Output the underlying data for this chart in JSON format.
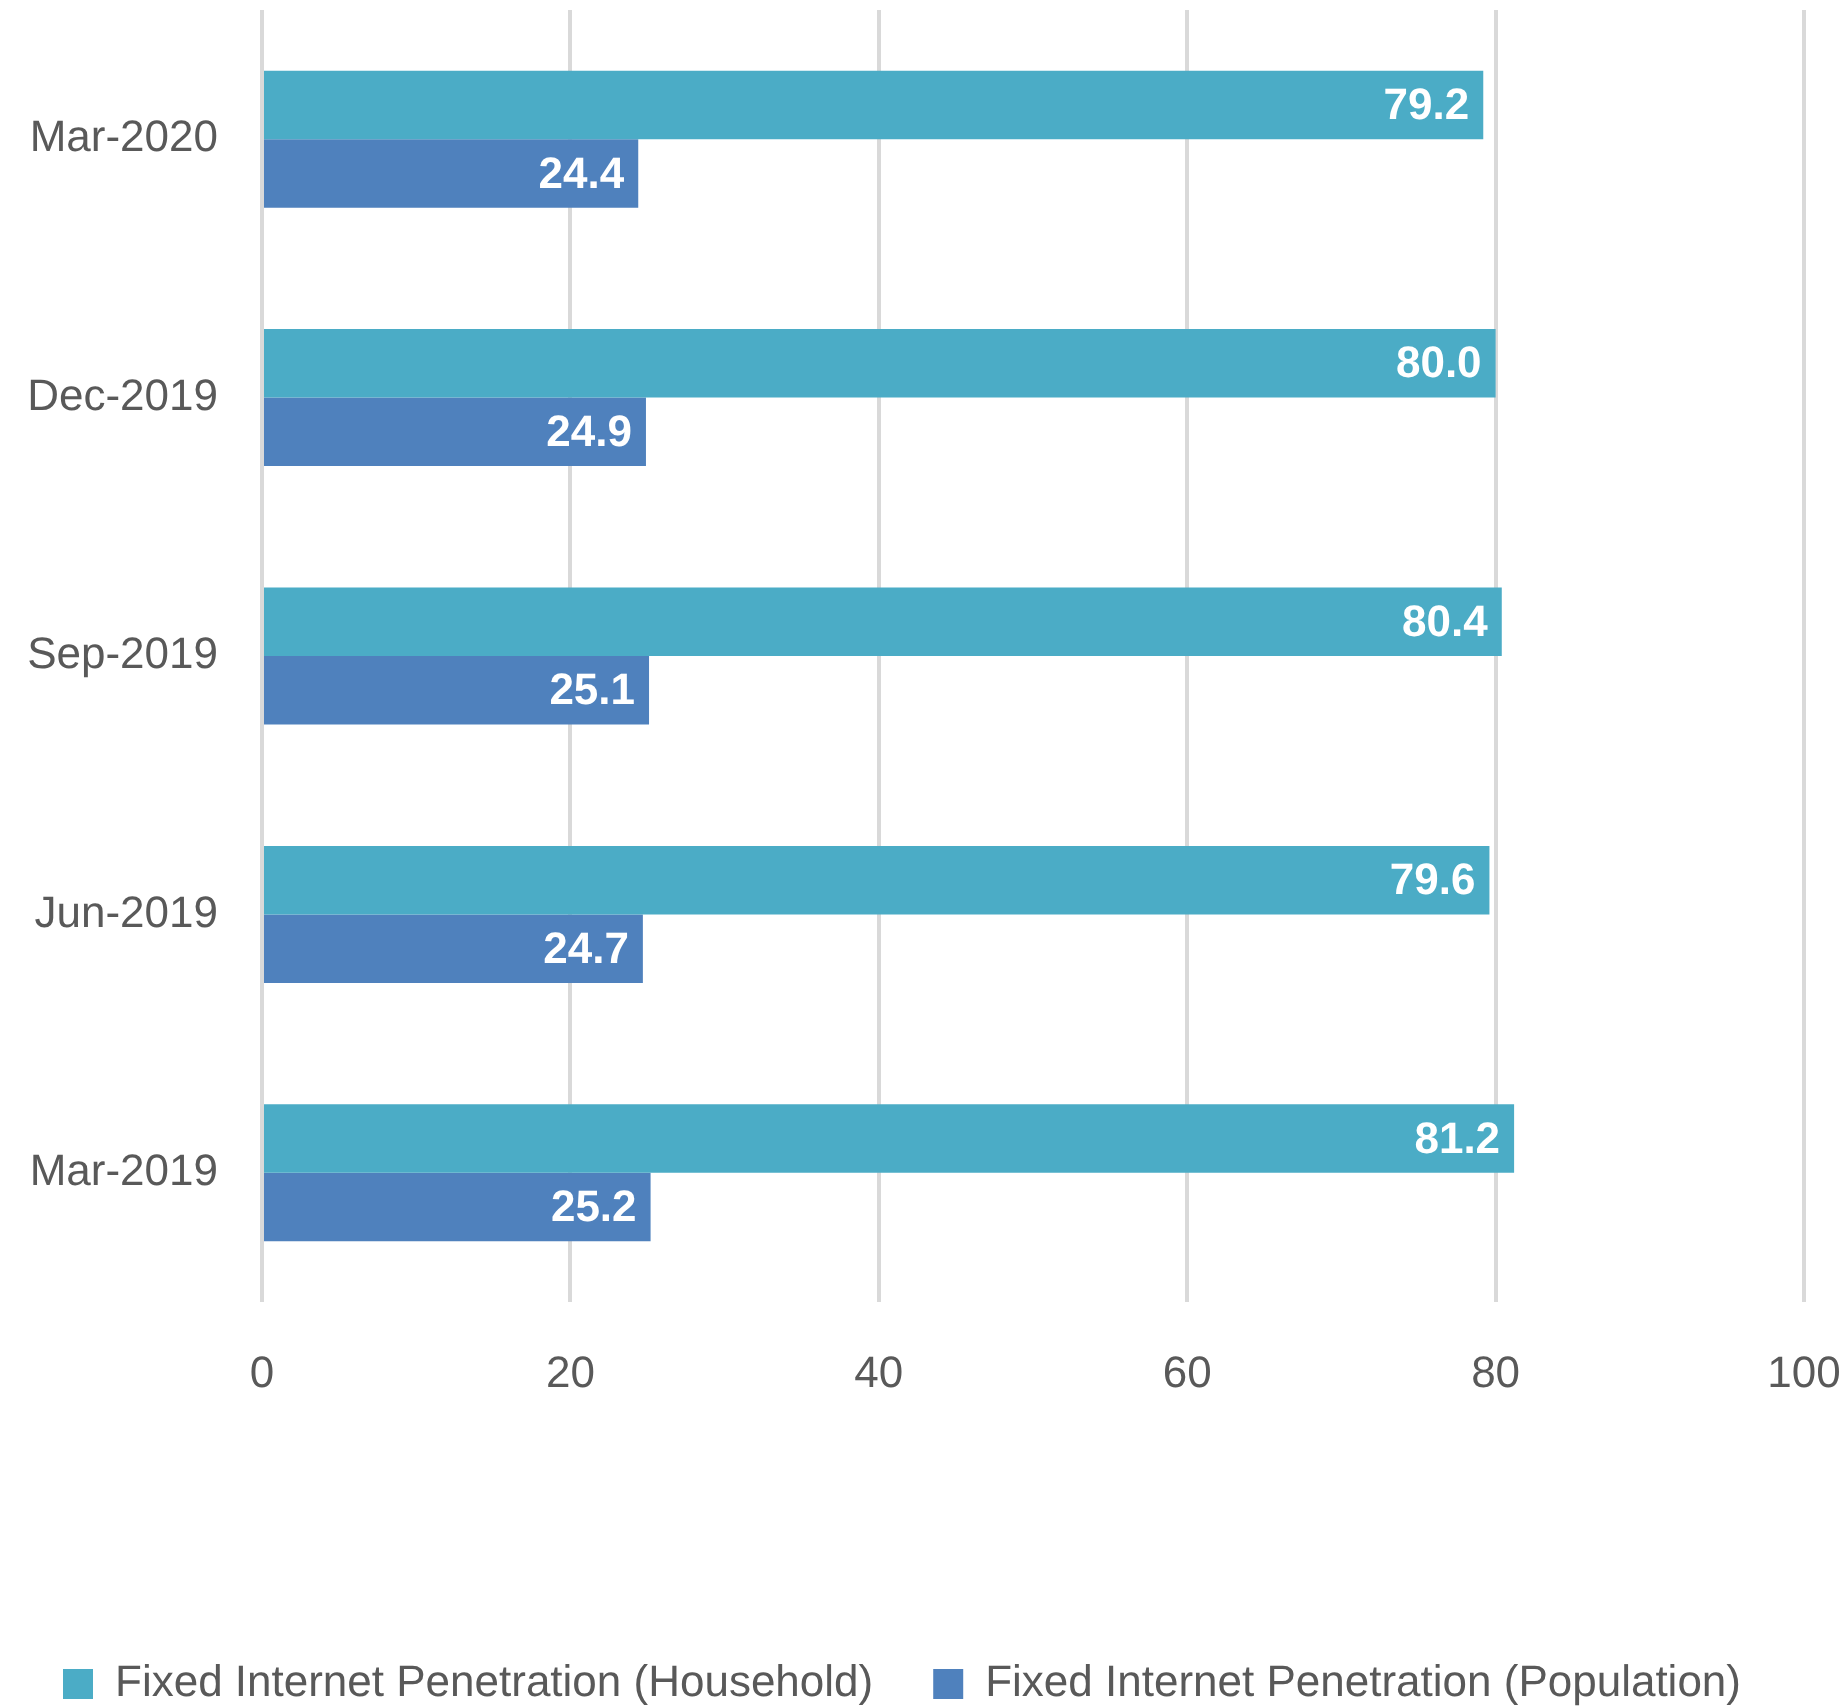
{
  "chart_data": {
    "type": "bar",
    "orientation": "horizontal",
    "categories": [
      "Mar-2020",
      "Dec-2019",
      "Sep-2019",
      "Jun-2019",
      "Mar-2019"
    ],
    "series": [
      {
        "name": "Fixed Internet Penetration (Household)",
        "color": "#4bacc6",
        "values": [
          79.2,
          80.0,
          80.4,
          79.6,
          81.2
        ],
        "value_labels": [
          "79.2",
          "80.0",
          "80.4",
          "79.6",
          "81.2"
        ]
      },
      {
        "name": "Fixed Internet Penetration (Population)",
        "color": "#4f81bd",
        "values": [
          24.4,
          24.9,
          25.1,
          24.7,
          25.2
        ],
        "value_labels": [
          "24.4",
          "24.9",
          "25.1",
          "24.7",
          "25.2"
        ]
      }
    ],
    "xlim": [
      0,
      100
    ],
    "xticks": [
      0,
      20,
      40,
      60,
      80,
      100
    ],
    "grid": "x",
    "legend": "bottom"
  }
}
